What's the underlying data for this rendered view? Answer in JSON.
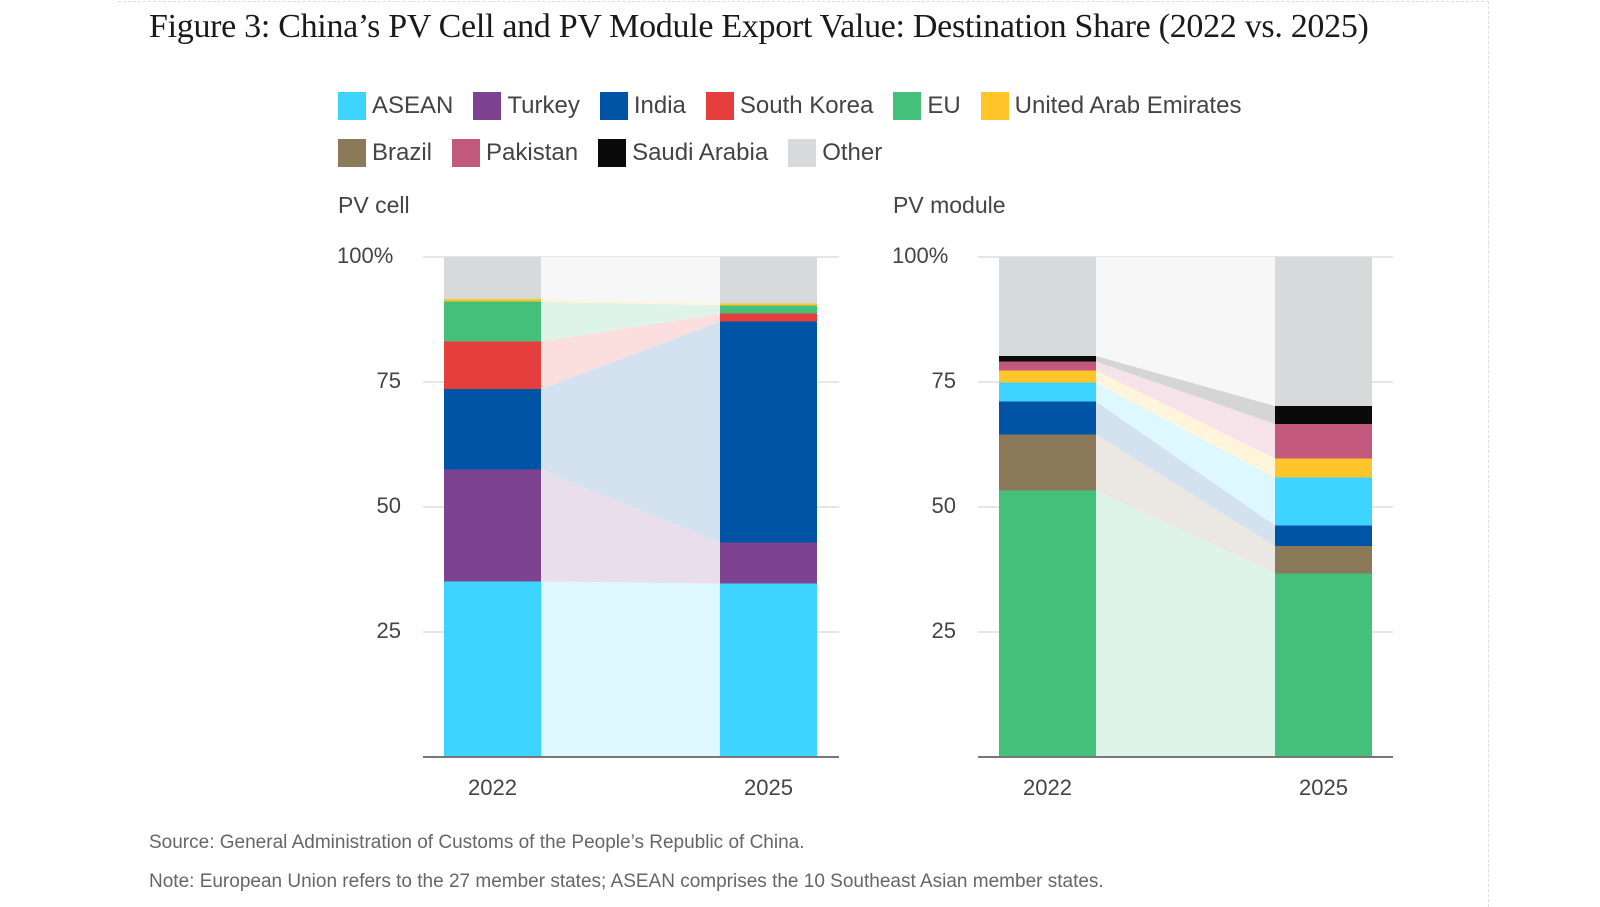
{
  "title": "Figure 3: China’s PV Cell and PV Module Export Value: Destination Share (2022 vs. 2025)",
  "legend": [
    {
      "name": "ASEAN",
      "color": "#3dd5ff"
    },
    {
      "name": "Turkey",
      "color": "#7e4390"
    },
    {
      "name": "India",
      "color": "#0054a6"
    },
    {
      "name": "South Korea",
      "color": "#e53e3c"
    },
    {
      "name": "EU",
      "color": "#45c07a"
    },
    {
      "name": "United Arab Emirates",
      "color": "#ffc52a"
    },
    {
      "name": "Brazil",
      "color": "#8a7a5a"
    },
    {
      "name": "Pakistan",
      "color": "#c2587c"
    },
    {
      "name": "Saudi Arabia",
      "color": "#0a0a0a"
    },
    {
      "name": "Other",
      "color": "#d8d9db"
    }
  ],
  "chart_data": [
    {
      "type": "bar",
      "stacked": true,
      "title": "PV cell",
      "categories": [
        "2022",
        "2025"
      ],
      "ylim": [
        0,
        100
      ],
      "yticks": [
        "25",
        "50",
        "75",
        "100%"
      ],
      "series": [
        {
          "name": "ASEAN",
          "values": [
            35.1,
            34.7
          ]
        },
        {
          "name": "Turkey",
          "values": [
            22.4,
            8.2
          ]
        },
        {
          "name": "India",
          "values": [
            16.1,
            44.2
          ]
        },
        {
          "name": "South Korea",
          "values": [
            9.5,
            1.6
          ]
        },
        {
          "name": "EU",
          "values": [
            8.0,
            1.6
          ]
        },
        {
          "name": "United Arab Emirates",
          "values": [
            0.5,
            0.4
          ]
        },
        {
          "name": "Other",
          "values": [
            8.4,
            9.3
          ]
        }
      ]
    },
    {
      "type": "bar",
      "stacked": true,
      "title": "PV module",
      "categories": [
        "2022",
        "2025"
      ],
      "ylim": [
        0,
        100
      ],
      "yticks": [
        "25",
        "50",
        "75",
        "100%"
      ],
      "series": [
        {
          "name": "EU",
          "values": [
            53.3,
            36.7
          ]
        },
        {
          "name": "Brazil",
          "values": [
            11.2,
            5.5
          ]
        },
        {
          "name": "India",
          "values": [
            6.6,
            4.1
          ]
        },
        {
          "name": "ASEAN",
          "values": [
            3.8,
            9.6
          ]
        },
        {
          "name": "United Arab Emirates",
          "values": [
            2.4,
            3.8
          ]
        },
        {
          "name": "Pakistan",
          "values": [
            1.8,
            6.9
          ]
        },
        {
          "name": "Saudi Arabia",
          "values": [
            1.1,
            3.6
          ]
        },
        {
          "name": "Other",
          "values": [
            19.8,
            29.8
          ]
        }
      ]
    }
  ],
  "source": "Source: General Administration of Customs of the People’s Republic of China.",
  "note": "Note: European Union refers to the 27 member states; ASEAN comprises the 10 Southeast Asian member states."
}
